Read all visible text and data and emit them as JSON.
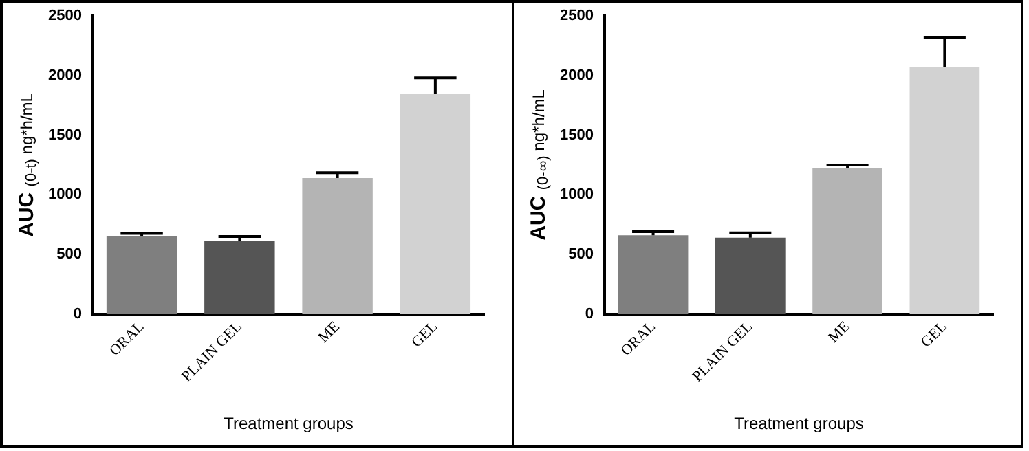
{
  "chart_data": [
    {
      "type": "bar",
      "xlabel": "Treatment groups",
      "ylabel": "AUC $_{(0-t)}$ ng*h/mL",
      "categories": [
        "ORAL",
        "PLAIN GEL",
        "ME",
        "GEL"
      ],
      "values": [
        650,
        610,
        1140,
        1850
      ],
      "errors": [
        25,
        40,
        45,
        130
      ],
      "colors": [
        "#7f7f7f",
        "#555555",
        "#b4b4b4",
        "#d2d2d2"
      ],
      "ylim": [
        0,
        2500
      ],
      "yticks": [
        0,
        500,
        1000,
        1500,
        2000,
        2500
      ],
      "grid": false,
      "legend": false
    },
    {
      "type": "bar",
      "xlabel": "Treatment groups",
      "ylabel": "AUC $_{(0-∞)}$ ng*h/mL",
      "categories": [
        "ORAL",
        "PLAIN GEL",
        "ME",
        "GEL"
      ],
      "values": [
        660,
        640,
        1220,
        2070
      ],
      "errors": [
        30,
        40,
        30,
        250
      ],
      "colors": [
        "#7f7f7f",
        "#555555",
        "#b4b4b4",
        "#d2d2d2"
      ],
      "ylim": [
        0,
        2500
      ],
      "yticks": [
        0,
        500,
        1000,
        1500,
        2000,
        2500
      ],
      "grid": false,
      "legend": false
    }
  ]
}
